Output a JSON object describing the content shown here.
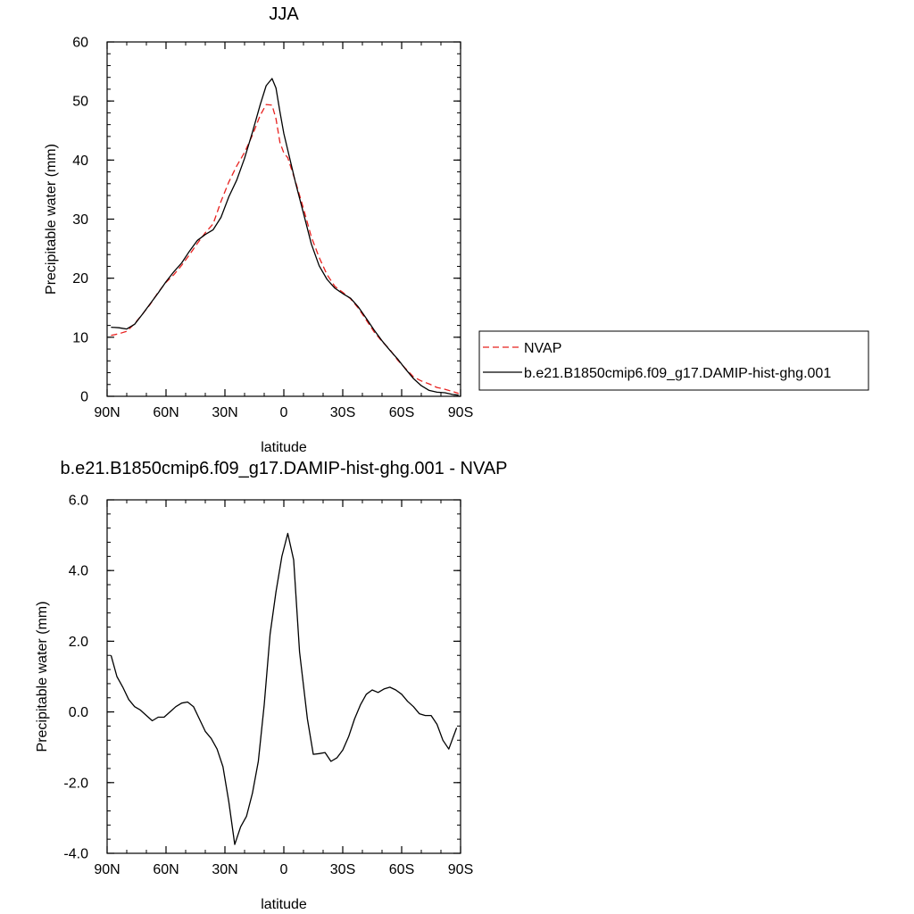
{
  "colors": {
    "nvap": "#e8211f",
    "model": "#000000",
    "axis": "#000000",
    "legend_border": "#000000"
  },
  "chart_data": [
    {
      "type": "line",
      "title": "JJA",
      "xlabel": "latitude",
      "ylabel": "Precipitable water (mm)",
      "xlim": [
        90,
        -90
      ],
      "ylim": [
        0,
        60
      ],
      "xticks": [
        {
          "value": 90,
          "label": "90N"
        },
        {
          "value": 60,
          "label": "60N"
        },
        {
          "value": 30,
          "label": "30N"
        },
        {
          "value": 0,
          "label": "0"
        },
        {
          "value": -30,
          "label": "30S"
        },
        {
          "value": -60,
          "label": "60S"
        },
        {
          "value": -90,
          "label": "90S"
        }
      ],
      "yticks": [
        {
          "value": 0,
          "label": "0"
        },
        {
          "value": 10,
          "label": "10"
        },
        {
          "value": 20,
          "label": "20"
        },
        {
          "value": 30,
          "label": "30"
        },
        {
          "value": 40,
          "label": "40"
        },
        {
          "value": 50,
          "label": "50"
        },
        {
          "value": 60,
          "label": "60"
        }
      ],
      "legend": "right",
      "series": [
        {
          "name": "NVAP",
          "style": "dashed",
          "color": "#e8211f",
          "x": [
            88,
            84,
            80,
            76,
            72,
            68,
            64,
            60,
            56,
            52,
            48,
            44,
            40,
            36,
            32,
            28,
            24,
            20,
            16,
            12,
            9,
            6,
            4,
            2,
            0,
            -2,
            -6,
            -10,
            -14,
            -18,
            -22,
            -26,
            -30,
            -34,
            -38,
            -42,
            -46,
            -50,
            -54,
            -58,
            -62,
            -66,
            -70,
            -74,
            -78,
            -82,
            -86,
            -89
          ],
          "values": [
            10.3,
            10.6,
            11.0,
            12.3,
            13.9,
            15.6,
            17.6,
            19.3,
            20.6,
            22.2,
            24.0,
            25.9,
            27.7,
            29.2,
            33.0,
            36.3,
            39.0,
            41.3,
            44.2,
            47.6,
            49.4,
            49.3,
            47.0,
            43.0,
            41.2,
            40.4,
            36.3,
            31.8,
            27.0,
            23.5,
            20.6,
            18.6,
            17.6,
            16.5,
            14.9,
            12.9,
            10.9,
            9.3,
            7.9,
            6.1,
            4.7,
            3.3,
            2.6,
            2.1,
            1.5,
            1.2,
            0.8,
            0.5
          ]
        },
        {
          "name": "b.e21.B1850cmip6.f09_g17.DAMIP-hist-ghg.001",
          "style": "solid",
          "color": "#000000",
          "x": [
            88,
            84,
            80,
            76,
            72,
            68,
            64,
            60,
            56,
            52,
            48,
            44,
            40,
            36,
            32,
            28,
            24,
            20,
            16,
            12,
            9,
            6,
            4,
            2,
            0,
            -2,
            -6,
            -10,
            -14,
            -18,
            -22,
            -26,
            -30,
            -34,
            -38,
            -42,
            -46,
            -50,
            -54,
            -58,
            -62,
            -66,
            -70,
            -74,
            -78,
            -82,
            -86,
            -89
          ],
          "values": [
            11.7,
            11.6,
            11.4,
            12.2,
            13.9,
            15.7,
            17.5,
            19.4,
            21.1,
            22.6,
            24.6,
            26.4,
            27.4,
            28.2,
            30.3,
            33.8,
            36.6,
            40.3,
            44.7,
            49.4,
            52.6,
            53.8,
            52.2,
            48.2,
            44.5,
            41.7,
            36.1,
            31.0,
            25.8,
            22.1,
            19.8,
            18.3,
            17.4,
            16.6,
            15.1,
            13.2,
            11.2,
            9.4,
            7.8,
            6.3,
            4.6,
            3.0,
            1.8,
            1.0,
            0.7,
            0.6,
            0.3,
            0.2
          ]
        }
      ]
    },
    {
      "type": "line",
      "title": "b.e21.B1850cmip6.f09_g17.DAMIP-hist-ghg.001 - NVAP",
      "xlabel": "latitude",
      "ylabel": "Precipitable water (mm)",
      "xlim": [
        90,
        -90
      ],
      "ylim": [
        -4,
        6
      ],
      "xticks": [
        {
          "value": 90,
          "label": "90N"
        },
        {
          "value": 60,
          "label": "60N"
        },
        {
          "value": 30,
          "label": "30N"
        },
        {
          "value": 0,
          "label": "0"
        },
        {
          "value": -30,
          "label": "30S"
        },
        {
          "value": -60,
          "label": "60S"
        },
        {
          "value": -90,
          "label": "90S"
        }
      ],
      "yticks": [
        {
          "value": -4,
          "label": "-4.0"
        },
        {
          "value": -2,
          "label": "-2.0"
        },
        {
          "value": 0,
          "label": "0.0"
        },
        {
          "value": 2,
          "label": "2.0"
        },
        {
          "value": 4,
          "label": "4.0"
        },
        {
          "value": 6,
          "label": "6.0"
        }
      ],
      "series": [
        {
          "style": "solid",
          "color": "#000000",
          "x": [
            88,
            85,
            82,
            79,
            76,
            73,
            70,
            67,
            64,
            61,
            58,
            55,
            52,
            49,
            46,
            43,
            40,
            37,
            34,
            31,
            28,
            25,
            22,
            19,
            16,
            13,
            10,
            7,
            4,
            1,
            -2,
            -5,
            -8,
            -12,
            -15,
            -18,
            -21,
            -24,
            -27,
            -30,
            -33,
            -36,
            -39,
            -42,
            -45,
            -48,
            -51,
            -54,
            -57,
            -60,
            -63,
            -66,
            -69,
            -72,
            -75,
            -78,
            -81,
            -84,
            -88
          ],
          "values": [
            1.6,
            1.0,
            0.7,
            0.35,
            0.15,
            0.05,
            -0.1,
            -0.25,
            -0.15,
            -0.15,
            0.0,
            0.15,
            0.25,
            0.28,
            0.15,
            -0.2,
            -0.55,
            -0.75,
            -1.05,
            -1.55,
            -2.55,
            -3.75,
            -3.25,
            -2.95,
            -2.3,
            -1.4,
            0.2,
            2.2,
            3.4,
            4.4,
            5.05,
            4.3,
            1.7,
            -0.2,
            -1.2,
            -1.18,
            -1.15,
            -1.4,
            -1.3,
            -1.08,
            -0.7,
            -0.2,
            0.2,
            0.5,
            0.62,
            0.55,
            0.65,
            0.7,
            0.62,
            0.5,
            0.3,
            0.15,
            -0.05,
            -0.1,
            -0.1,
            -0.35,
            -0.8,
            -1.05,
            -0.45
          ]
        }
      ]
    }
  ]
}
